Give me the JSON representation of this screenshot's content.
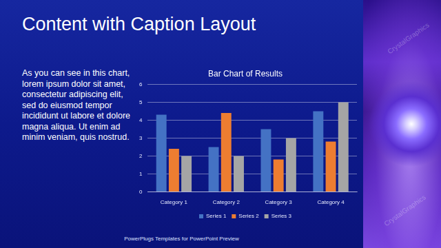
{
  "slide": {
    "title": "Content with Caption Layout",
    "caption": "As you can see in this chart, lorem ipsum dolor sit amet, consectetur adipiscing elit, sed do eiusmod tempor incididunt ut labore et dolore magna aliqua. Ut enim ad minim veniam, quis nostrud.",
    "footer": "PowerPlugs Templates for PowerPoint Preview",
    "watermark": "CrystalGraphics"
  },
  "chart_data": {
    "type": "bar",
    "title": "Bar Chart of Results",
    "categories": [
      "Category 1",
      "Category 2",
      "Category 3",
      "Category 4"
    ],
    "series": [
      {
        "name": "Series 1",
        "color": "#4472c4",
        "values": [
          4.3,
          2.5,
          3.5,
          4.5
        ]
      },
      {
        "name": "Series 2",
        "color": "#ed7d31",
        "values": [
          2.4,
          4.4,
          1.8,
          2.8
        ]
      },
      {
        "name": "Series 3",
        "color": "#a5a5a5",
        "values": [
          2.0,
          2.0,
          3.0,
          5.0
        ]
      }
    ],
    "ylim": [
      0,
      6
    ],
    "yticks": [
      0,
      1,
      2,
      3,
      4,
      5,
      6
    ],
    "grid": true,
    "legend": "bottom"
  }
}
